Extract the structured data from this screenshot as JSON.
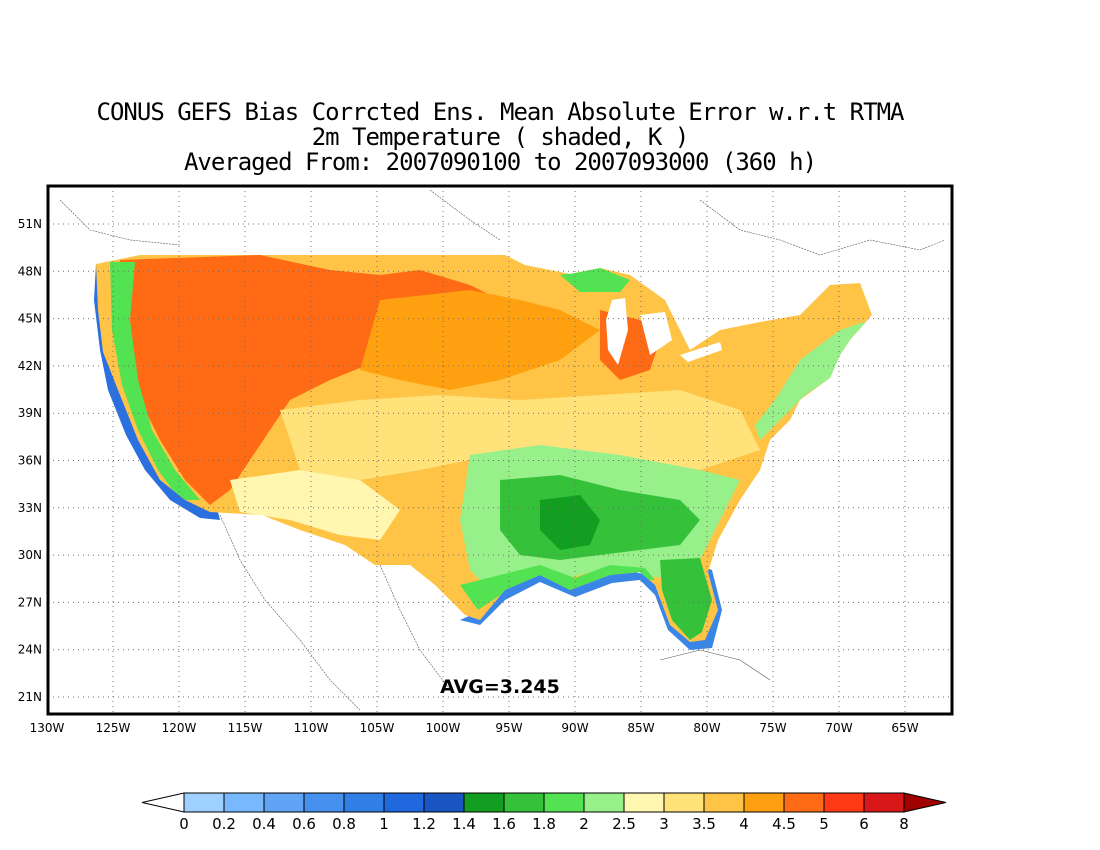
{
  "title": {
    "line1": "CONUS GEFS Bias Corrcted Ens. Mean Absolute Error w.r.t RTMA",
    "line2": "2m Temperature ( shaded, K )",
    "line3": "Averaged From: 2007090100 to 2007093000 (360 h)"
  },
  "map": {
    "lat_ticks": [
      "51N",
      "48N",
      "45N",
      "42N",
      "39N",
      "36N",
      "33N",
      "30N",
      "27N",
      "24N",
      "21N"
    ],
    "lon_ticks": [
      "130W",
      "125W",
      "120W",
      "115W",
      "110W",
      "105W",
      "100W",
      "95W",
      "90W",
      "85W",
      "80W",
      "75W",
      "70W",
      "65W"
    ],
    "avg_label": "AVG=3.245",
    "grid": "dotted"
  },
  "colorbar": {
    "levels": [
      "0",
      "0.2",
      "0.4",
      "0.6",
      "0.8",
      "1",
      "1.2",
      "1.4",
      "1.6",
      "1.8",
      "2",
      "2.5",
      "3",
      "3.5",
      "4",
      "4.5",
      "5",
      "6",
      "8"
    ],
    "colors": [
      "#9ed1ff",
      "#78b8ff",
      "#5fa4f5",
      "#4691f0",
      "#2f7fe6",
      "#1f68de",
      "#1a55c4",
      "#129e20",
      "#35c23a",
      "#52e252",
      "#98f08a",
      "#fff7b0",
      "#ffe27a",
      "#ffc446",
      "#ffa010",
      "#ff6a14",
      "#ff3a14",
      "#d81818"
    ],
    "under_color": "#ffffff",
    "over_color": "#a00000"
  },
  "colors": {
    "deep_blue": "#1f68de",
    "green": "#35c23a",
    "yellow": "#ffe27a",
    "orange": "#ffa010",
    "red_orange": "#ff6a14"
  }
}
